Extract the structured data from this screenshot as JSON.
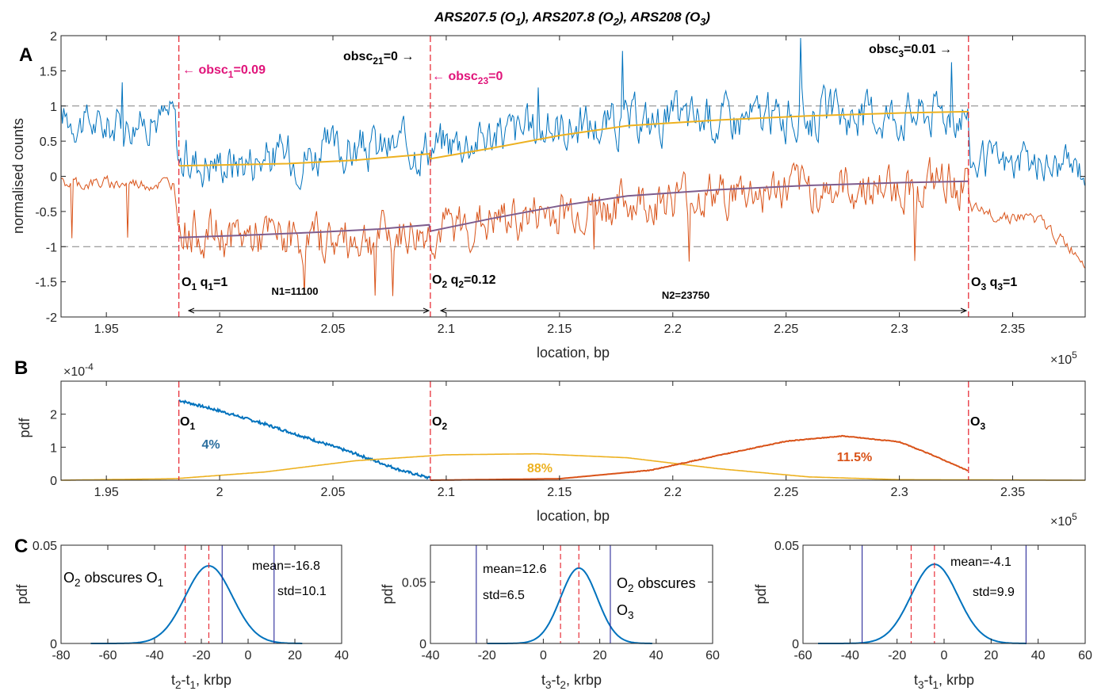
{
  "title": {
    "main": "ARS207.5 (O",
    "s1": "1",
    "m2": "), ARS207.8 (O",
    "s2": "2",
    "m3": "), ARS208 (O",
    "s3": "3",
    "end": ")"
  },
  "panels": {
    "A": "A",
    "B": "B",
    "C": "C"
  },
  "colors": {
    "blue": "#0072BD",
    "orange": "#D95319",
    "yellow": "#EDB120",
    "purple": "#7E5D8E",
    "red": "#E8303A",
    "magenta": "#E0147A",
    "navy": "#2A2A9A",
    "grid": "#808080"
  },
  "chart_data": [
    {
      "id": "A",
      "type": "line",
      "xlabel": "location, bp",
      "ylabel": "normalised counts",
      "xlim": [
        193000,
        238200
      ],
      "ylim": [
        -2,
        2
      ],
      "x_ticks": [
        195000,
        200000,
        205000,
        210000,
        215000,
        220000,
        225000,
        230000,
        235000
      ],
      "x_tick_labels": [
        "1.95",
        "2",
        "2.05",
        "2.1",
        "2.15",
        "2.2",
        "2.25",
        "2.3",
        "2.35"
      ],
      "x_exponent": {
        "base": "×10",
        "exp": "5"
      },
      "y_ticks": [
        -2,
        -1.5,
        -1,
        -0.5,
        0,
        0.5,
        1,
        1.5,
        2
      ],
      "y_tick_labels": [
        "-2",
        "-1.5",
        "-1",
        "-0.5",
        "0",
        "0.5",
        "1",
        "1.5",
        "2"
      ],
      "reference_lines": [
        1,
        -1
      ],
      "origins": [
        198200,
        209300,
        233050
      ],
      "series": [
        {
          "color": "blue",
          "style": "noisy",
          "values": [
            [
              193000,
              0.85
            ],
            [
              195000,
              0.7
            ],
            [
              197000,
              0.8
            ],
            [
              198000,
              0.9
            ],
            [
              198200,
              0.2
            ],
            [
              200000,
              0.22
            ],
            [
              205000,
              0.35
            ],
            [
              209300,
              0.45
            ],
            [
              212000,
              0.6
            ],
            [
              215000,
              0.7
            ],
            [
              220000,
              0.8
            ],
            [
              225000,
              0.85
            ],
            [
              230000,
              0.9
            ],
            [
              233000,
              0.95
            ],
            [
              233100,
              0.2
            ],
            [
              238200,
              0.12
            ]
          ]
        },
        {
          "color": "yellow",
          "style": "smooth",
          "values": [
            [
              198200,
              0.15
            ],
            [
              200000,
              0.16
            ],
            [
              203000,
              0.18
            ],
            [
              206000,
              0.23
            ],
            [
              209250,
              0.32
            ],
            [
              209300,
              0.25
            ],
            [
              212000,
              0.4
            ],
            [
              215000,
              0.58
            ],
            [
              218000,
              0.72
            ],
            [
              222000,
              0.8
            ],
            [
              226000,
              0.86
            ],
            [
              230000,
              0.9
            ],
            [
              233050,
              0.92
            ]
          ]
        },
        {
          "color": "orange",
          "style": "noisy",
          "values": [
            [
              193000,
              -0.1
            ],
            [
              198000,
              -0.1
            ],
            [
              198200,
              -0.7
            ],
            [
              200000,
              -0.85
            ],
            [
              205000,
              -0.9
            ],
            [
              209300,
              -0.8
            ],
            [
              212000,
              -0.65
            ],
            [
              215000,
              -0.5
            ],
            [
              220000,
              -0.3
            ],
            [
              225000,
              -0.2
            ],
            [
              230000,
              -0.15
            ],
            [
              233000,
              -0.1
            ],
            [
              233100,
              -0.5
            ],
            [
              236000,
              -0.6
            ],
            [
              238200,
              -1.2
            ]
          ]
        },
        {
          "color": "purple",
          "style": "smooth",
          "values": [
            [
              198200,
              -0.87
            ],
            [
              201000,
              -0.84
            ],
            [
              204000,
              -0.8
            ],
            [
              207000,
              -0.75
            ],
            [
              209250,
              -0.69
            ],
            [
              209300,
              -0.78
            ],
            [
              212000,
              -0.6
            ],
            [
              215000,
              -0.42
            ],
            [
              218000,
              -0.28
            ],
            [
              222000,
              -0.19
            ],
            [
              226000,
              -0.13
            ],
            [
              230000,
              -0.09
            ],
            [
              233050,
              -0.07
            ]
          ]
        }
      ],
      "annotations": {
        "obsc1": {
          "base": "← obsc",
          "sub": "1",
          "rest": "=0.09"
        },
        "obsc21": {
          "base": "obsc",
          "sub": "21",
          "rest": "=0 →"
        },
        "obsc23": {
          "base": "← obsc",
          "sub": "23",
          "rest": "=0"
        },
        "obsc3": {
          "base": "obsc",
          "sub": "3",
          "rest": "=0.01 →"
        },
        "o1": {
          "base": "O",
          "sub": "1",
          "q": "q",
          "qsub": "1",
          "qrest": "=1"
        },
        "o2": {
          "base": "O",
          "sub": "2",
          "q": "q",
          "qsub": "2",
          "qrest": "=0.12"
        },
        "o3": {
          "base": "O",
          "sub": "3",
          "q": "q",
          "qsub": "3",
          "qrest": "=1"
        },
        "n1": "N1=11100",
        "n2": "N2=23750"
      }
    },
    {
      "id": "B",
      "type": "line",
      "xlabel": "location, bp",
      "ylabel": "pdf",
      "xlim": [
        193000,
        238200
      ],
      "ylim": [
        0,
        0.0003
      ],
      "y_ticks": [
        0,
        0.0001,
        0.0002
      ],
      "y_tick_labels": [
        "0",
        "1",
        "2"
      ],
      "y_exponent": {
        "base": "×10",
        "exp": "-4"
      },
      "x_ticks": [
        195000,
        200000,
        205000,
        210000,
        215000,
        220000,
        225000,
        230000,
        235000
      ],
      "x_tick_labels": [
        "1.95",
        "2",
        "2.05",
        "2.1",
        "2.15",
        "2.2",
        "2.25",
        "2.3",
        "2.35"
      ],
      "x_exponent": {
        "base": "×10",
        "exp": "5"
      },
      "series": [
        {
          "color": "blue",
          "label": "4%",
          "values": [
            [
              198200,
              0.000242
            ],
            [
              200000,
              0.00021
            ],
            [
              202000,
              0.00017
            ],
            [
              204000,
              0.000125
            ],
            [
              206000,
              8e-05
            ],
            [
              208000,
              3e-05
            ],
            [
              209300,
              6e-06
            ]
          ]
        },
        {
          "color": "yellow",
          "label": "88%",
          "values": [
            [
              193000,
              0.0
            ],
            [
              198000,
              4.5e-06
            ],
            [
              202000,
              2.5e-05
            ],
            [
              206000,
              5.9e-05
            ],
            [
              210000,
              7.7e-05
            ],
            [
              214000,
              8e-05
            ],
            [
              218000,
              6.8e-05
            ],
            [
              222000,
              3.5e-05
            ],
            [
              226000,
              1e-05
            ],
            [
              230000,
              1.7e-06
            ],
            [
              238200,
              0.0
            ]
          ]
        },
        {
          "color": "orange",
          "label": "11.5%",
          "values": [
            [
              209300,
              0.0
            ],
            [
              215000,
              4.5e-06
            ],
            [
              219000,
              3e-05
            ],
            [
              222000,
              7.5e-05
            ],
            [
              225000,
              0.000118
            ],
            [
              227500,
              0.000134
            ],
            [
              230000,
              0.000116
            ],
            [
              231500,
              7.5e-05
            ],
            [
              233050,
              2.8e-05
            ]
          ]
        }
      ],
      "origin_labels": {
        "o1": {
          "base": "O",
          "sub": "1"
        },
        "o2": {
          "base": "O",
          "sub": "2"
        },
        "o3": {
          "base": "O",
          "sub": "3"
        }
      }
    },
    {
      "id": "C1",
      "type": "line",
      "xlabel": {
        "base": "t",
        "s1": "2",
        "mid": "-t",
        "s2": "1",
        "rest": ", krbp"
      },
      "ylabel": "pdf",
      "xlim": [
        -80,
        40
      ],
      "ylim": [
        0,
        0.05
      ],
      "x_ticks": [
        -80,
        -60,
        -40,
        -20,
        0,
        20,
        40
      ],
      "y_ticks": [
        0,
        0.05
      ],
      "y_tick_labels": [
        "0",
        "0.05"
      ],
      "mean": -16.8,
      "std": 10.1,
      "red_lines": [
        -26.9,
        -16.8
      ],
      "navy_lines": [
        -11.1,
        11.1
      ],
      "text": {
        "mean": "mean=-16.8",
        "std": "std=10.1",
        "note": "O",
        "note_sub": "2",
        "note_mid": " obscures O",
        "note_sub2": "1"
      }
    },
    {
      "id": "C2",
      "type": "line",
      "xlabel": {
        "base": "t",
        "s1": "3",
        "mid": "-t",
        "s2": "2",
        "rest": ", krbp"
      },
      "ylabel": "pdf",
      "xlim": [
        -40,
        60
      ],
      "ylim": [
        0,
        0.08
      ],
      "x_ticks": [
        -40,
        -20,
        0,
        20,
        40,
        60
      ],
      "y_ticks": [
        0,
        0.05
      ],
      "y_tick_labels": [
        "0",
        "0.05"
      ],
      "mean": 12.6,
      "std": 6.5,
      "red_lines": [
        6.1,
        12.6
      ],
      "navy_lines": [
        -23.75,
        23.75
      ],
      "text": {
        "mean": "mean=12.6",
        "std": "std=6.5",
        "note1": "O",
        "note1_sub": "2",
        "note1_rest": " obscures",
        "note2": "O",
        "note2_sub": "3"
      }
    },
    {
      "id": "C3",
      "type": "line",
      "xlabel": {
        "base": "t",
        "s1": "3",
        "mid": "-t",
        "s2": "1",
        "rest": ", krbp"
      },
      "ylabel": "pdf",
      "xlim": [
        -60,
        60
      ],
      "ylim": [
        0,
        0.05
      ],
      "x_ticks": [
        -60,
        -40,
        -20,
        0,
        20,
        40,
        60
      ],
      "y_ticks": [
        0,
        0.05
      ],
      "y_tick_labels": [
        "0",
        "0.05"
      ],
      "mean": -4.1,
      "std": 9.9,
      "red_lines": [
        -14.0,
        -4.1
      ],
      "navy_lines": [
        -34.85,
        34.85
      ],
      "text": {
        "mean": "mean=-4.1",
        "std": "std=9.9"
      }
    }
  ]
}
